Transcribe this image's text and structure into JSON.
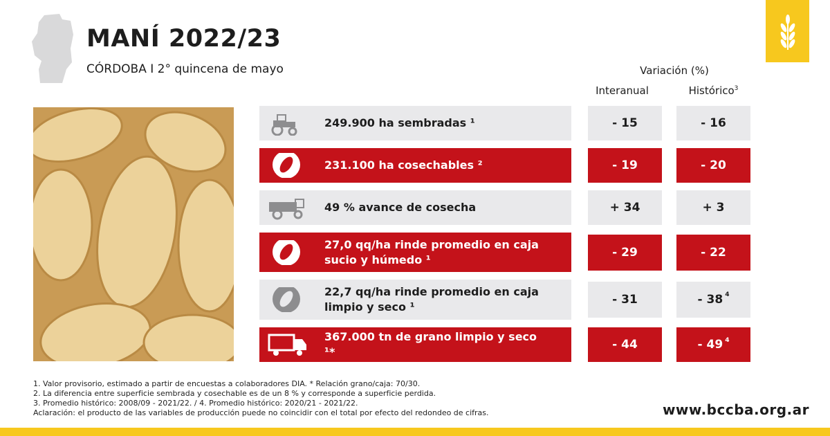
{
  "header": {
    "title": "MANÍ 2022/23",
    "subtitle": "CÓRDOBA I 2° quincena de mayo"
  },
  "table": {
    "group_header": "Variación (%)",
    "columns": [
      {
        "label": "Interanual"
      },
      {
        "label": "Histórico",
        "sup": "3"
      }
    ],
    "rows": [
      {
        "style": "grey",
        "icon": "tractor",
        "label": "249.900 ha sembradas ¹",
        "interanual": "- 15",
        "historico": "- 16"
      },
      {
        "style": "red",
        "icon": "peanut",
        "label": "231.100 ha cosechables ²",
        "interanual": "- 19",
        "historico": "- 20"
      },
      {
        "style": "grey",
        "icon": "harvester",
        "label": "49 % avance de cosecha",
        "interanual": "+ 34",
        "historico": "+ 3"
      },
      {
        "style": "red",
        "icon": "peanut",
        "label": "27,0 qq/ha rinde promedio en caja sucio y húmedo ¹",
        "interanual": "- 29",
        "historico": "- 22"
      },
      {
        "style": "grey",
        "icon": "peanut",
        "label": "22,7 qq/ha rinde promedio en caja limpio y seco ¹",
        "interanual": "- 31",
        "historico": "- 38",
        "historico_sup": "4"
      },
      {
        "style": "red",
        "icon": "truck",
        "label": "367.000 tn de grano limpio y seco ¹*",
        "interanual": "- 44",
        "historico": "- 49",
        "historico_sup": "4"
      }
    ]
  },
  "footnotes": [
    "1. Valor provisorio, estimado a partir de encuestas a colaboradores DIA.  * Relación grano/caja: 70/30.",
    "2. La diferencia entre superficie sembrada y cosechable es de un 8 % y corresponde a superficie perdida.",
    "3. Promedio histórico: 2008/09 - 2021/22. / 4. Promedio histórico: 2020/21 - 2021/22.",
    "Aclaración: el producto de las variables de producción puede no coincidir con el total por efecto del redondeo de cifras."
  ],
  "url": "www.bccba.org.ar"
}
